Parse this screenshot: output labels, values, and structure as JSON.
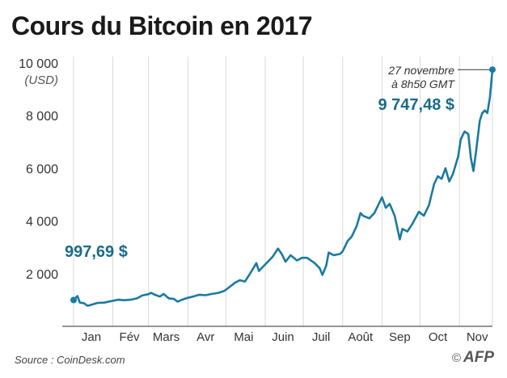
{
  "chart_data": {
    "type": "line",
    "title": "Cours du Bitcoin en 2017",
    "ylabel": "(USD)",
    "xlabel": "",
    "ylim": [
      0,
      10000
    ],
    "yticks": [
      2000,
      4000,
      6000,
      8000,
      10000
    ],
    "ytick_labels": [
      "2 000",
      "4 000",
      "6 000",
      "8 000",
      "10 000"
    ],
    "xlim": [
      "2017-01-01",
      "2017-11-27"
    ],
    "grid": "vertical",
    "xtick_labels": [
      {
        "date": "2017-01-15",
        "label": "Jan"
      },
      {
        "date": "2017-02-14",
        "label": "Fév"
      },
      {
        "date": "2017-03-15",
        "label": "Mars"
      },
      {
        "date": "2017-04-15",
        "label": "Avr"
      },
      {
        "date": "2017-05-15",
        "label": "Mai"
      },
      {
        "date": "2017-06-15",
        "label": "Juin"
      },
      {
        "date": "2017-07-15",
        "label": "Juil"
      },
      {
        "date": "2017-08-15",
        "label": "Août"
      },
      {
        "date": "2017-09-15",
        "label": "Sep"
      },
      {
        "date": "2017-10-15",
        "label": "Oct"
      },
      {
        "date": "2017-11-15",
        "label": "Nov"
      }
    ],
    "month_boundaries": [
      "2017-01-01",
      "2017-02-01",
      "2017-03-01",
      "2017-04-01",
      "2017-05-01",
      "2017-06-01",
      "2017-07-01",
      "2017-08-01",
      "2017-09-01",
      "2017-10-01",
      "2017-11-01"
    ],
    "series": [
      {
        "color": "#1a7aa0",
        "points": [
          [
            "2017-01-01",
            998
          ],
          [
            "2017-01-04",
            1150
          ],
          [
            "2017-01-06",
            900
          ],
          [
            "2017-01-09",
            880
          ],
          [
            "2017-01-12",
            780
          ],
          [
            "2017-01-16",
            830
          ],
          [
            "2017-01-20",
            890
          ],
          [
            "2017-01-25",
            900
          ],
          [
            "2017-01-31",
            960
          ],
          [
            "2017-02-05",
            1010
          ],
          [
            "2017-02-10",
            990
          ],
          [
            "2017-02-15",
            1010
          ],
          [
            "2017-02-20",
            1060
          ],
          [
            "2017-02-24",
            1170
          ],
          [
            "2017-03-01",
            1220
          ],
          [
            "2017-03-03",
            1270
          ],
          [
            "2017-03-06",
            1200
          ],
          [
            "2017-03-10",
            1130
          ],
          [
            "2017-03-13",
            1230
          ],
          [
            "2017-03-17",
            1060
          ],
          [
            "2017-03-21",
            1040
          ],
          [
            "2017-03-24",
            940
          ],
          [
            "2017-03-27",
            1000
          ],
          [
            "2017-03-31",
            1070
          ],
          [
            "2017-04-05",
            1130
          ],
          [
            "2017-04-10",
            1200
          ],
          [
            "2017-04-15",
            1180
          ],
          [
            "2017-04-20",
            1230
          ],
          [
            "2017-04-25",
            1270
          ],
          [
            "2017-04-30",
            1350
          ],
          [
            "2017-05-04",
            1500
          ],
          [
            "2017-05-08",
            1650
          ],
          [
            "2017-05-12",
            1750
          ],
          [
            "2017-05-16",
            1700
          ],
          [
            "2017-05-20",
            2000
          ],
          [
            "2017-05-25",
            2400
          ],
          [
            "2017-05-27",
            2100
          ],
          [
            "2017-05-31",
            2300
          ],
          [
            "2017-06-04",
            2500
          ],
          [
            "2017-06-07",
            2650
          ],
          [
            "2017-06-11",
            2950
          ],
          [
            "2017-06-14",
            2750
          ],
          [
            "2017-06-17",
            2450
          ],
          [
            "2017-06-21",
            2700
          ],
          [
            "2017-06-26",
            2500
          ],
          [
            "2017-06-30",
            2600
          ],
          [
            "2017-07-04",
            2600
          ],
          [
            "2017-07-10",
            2400
          ],
          [
            "2017-07-14",
            2200
          ],
          [
            "2017-07-16",
            1950
          ],
          [
            "2017-07-19",
            2300
          ],
          [
            "2017-07-21",
            2800
          ],
          [
            "2017-07-25",
            2700
          ],
          [
            "2017-07-30",
            2750
          ],
          [
            "2017-08-01",
            2850
          ],
          [
            "2017-08-05",
            3250
          ],
          [
            "2017-08-08",
            3400
          ],
          [
            "2017-08-12",
            3800
          ],
          [
            "2017-08-15",
            4300
          ],
          [
            "2017-08-17",
            4200
          ],
          [
            "2017-08-22",
            4100
          ],
          [
            "2017-08-26",
            4300
          ],
          [
            "2017-08-29",
            4600
          ],
          [
            "2017-09-01",
            4900
          ],
          [
            "2017-09-04",
            4500
          ],
          [
            "2017-09-07",
            4650
          ],
          [
            "2017-09-11",
            4200
          ],
          [
            "2017-09-15",
            3300
          ],
          [
            "2017-09-17",
            3700
          ],
          [
            "2017-09-21",
            3600
          ],
          [
            "2017-09-25",
            3900
          ],
          [
            "2017-09-30",
            4350
          ],
          [
            "2017-10-04",
            4200
          ],
          [
            "2017-10-08",
            4600
          ],
          [
            "2017-10-12",
            5400
          ],
          [
            "2017-10-15",
            5700
          ],
          [
            "2017-10-18",
            5600
          ],
          [
            "2017-10-21",
            6000
          ],
          [
            "2017-10-24",
            5500
          ],
          [
            "2017-10-27",
            5800
          ],
          [
            "2017-10-31",
            6450
          ],
          [
            "2017-11-02",
            7100
          ],
          [
            "2017-11-05",
            7400
          ],
          [
            "2017-11-08",
            7300
          ],
          [
            "2017-11-10",
            6400
          ],
          [
            "2017-11-12",
            5900
          ],
          [
            "2017-11-14",
            6600
          ],
          [
            "2017-11-17",
            7800
          ],
          [
            "2017-11-19",
            8100
          ],
          [
            "2017-11-21",
            8200
          ],
          [
            "2017-11-23",
            8100
          ],
          [
            "2017-11-25",
            8700
          ],
          [
            "2017-11-27",
            9747
          ]
        ]
      }
    ],
    "annotations": {
      "start": {
        "date": "2017-01-01",
        "value": 997.69,
        "label": "997,69 $"
      },
      "end": {
        "date": "2017-11-27",
        "value": 9747.48,
        "label": "9 747,48 $",
        "date_line1": "27 novembre",
        "date_line2": "à 8h50 GMT"
      }
    },
    "colors": {
      "line": "#1a7aa0",
      "accent_text": "#1a6b8a",
      "grid": "#d9d9d9",
      "axis": "#555555"
    }
  },
  "footer": {
    "source": "Source : CoinDesk.com",
    "credit_symbol": "©",
    "credit": "AFP"
  }
}
